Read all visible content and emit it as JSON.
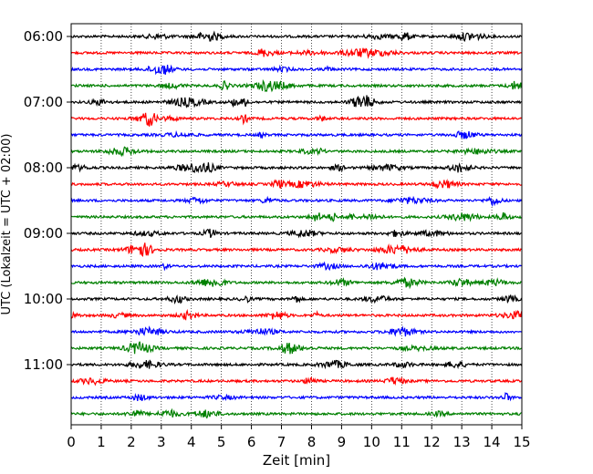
{
  "chart_data": {
    "type": "line",
    "title": "",
    "xlabel": "Zeit  [min]",
    "ylabel": "UTC (Lokalzeit = UTC + 02:00)",
    "xlim": [
      0,
      15
    ],
    "x_ticks": [
      "0",
      "1",
      "2",
      "3",
      "4",
      "5",
      "6",
      "7",
      "8",
      "9",
      "10",
      "11",
      "12",
      "13",
      "14",
      "15"
    ],
    "y_ticks": [
      "06:00",
      "07:00",
      "08:00",
      "09:00",
      "10:00",
      "11:00"
    ],
    "grid": "vertical dotted",
    "line_interval_minutes": 15,
    "colors": [
      "#000000",
      "#ff0000",
      "#0000ff",
      "#008000"
    ],
    "traces": [
      {
        "start": "06:00",
        "color": "#000000"
      },
      {
        "start": "06:15",
        "color": "#ff0000"
      },
      {
        "start": "06:30",
        "color": "#0000ff"
      },
      {
        "start": "06:45",
        "color": "#008000"
      },
      {
        "start": "07:00",
        "color": "#000000"
      },
      {
        "start": "07:15",
        "color": "#ff0000"
      },
      {
        "start": "07:30",
        "color": "#0000ff"
      },
      {
        "start": "07:45",
        "color": "#008000"
      },
      {
        "start": "08:00",
        "color": "#000000"
      },
      {
        "start": "08:15",
        "color": "#ff0000"
      },
      {
        "start": "08:30",
        "color": "#0000ff"
      },
      {
        "start": "08:45",
        "color": "#008000"
      },
      {
        "start": "09:00",
        "color": "#000000"
      },
      {
        "start": "09:15",
        "color": "#ff0000"
      },
      {
        "start": "09:30",
        "color": "#0000ff"
      },
      {
        "start": "09:45",
        "color": "#008000"
      },
      {
        "start": "10:00",
        "color": "#000000"
      },
      {
        "start": "10:15",
        "color": "#ff0000"
      },
      {
        "start": "10:30",
        "color": "#0000ff"
      },
      {
        "start": "10:45",
        "color": "#008000"
      },
      {
        "start": "11:00",
        "color": "#000000"
      },
      {
        "start": "11:15",
        "color": "#ff0000"
      },
      {
        "start": "11:30",
        "color": "#0000ff"
      },
      {
        "start": "11:45",
        "color": "#008000"
      }
    ]
  }
}
